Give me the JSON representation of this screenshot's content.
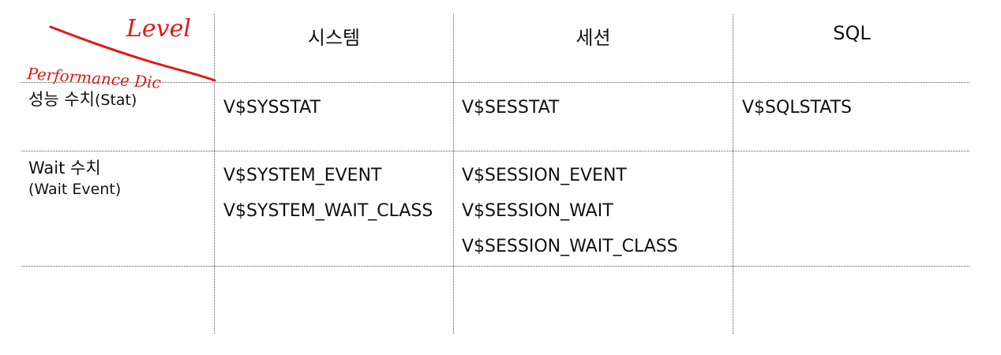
{
  "annotation": {
    "level_text": "Level",
    "performance_text": "Performance Dic",
    "color": "#e01818"
  },
  "table": {
    "headers": [
      "시스템",
      "세션",
      "SQL"
    ],
    "rows": [
      {
        "label_line1": "성능 수치",
        "label_line1_suffix": "(Stat)",
        "label_line2": "",
        "system": [
          "V$SYSSTAT"
        ],
        "session": [
          "V$SESSTAT"
        ],
        "sql": [
          "V$SQLSTATS"
        ]
      },
      {
        "label_line1": "Wait 수치",
        "label_line1_suffix": "",
        "label_line2": "(Wait Event)",
        "system": [
          "V$SYSTEM_EVENT",
          "V$SYSTEM_WAIT_CLASS"
        ],
        "session": [
          "V$SESSION_EVENT",
          "V$SESSION_WAIT",
          "V$SESSION_WAIT_CLASS"
        ],
        "sql": []
      }
    ]
  }
}
